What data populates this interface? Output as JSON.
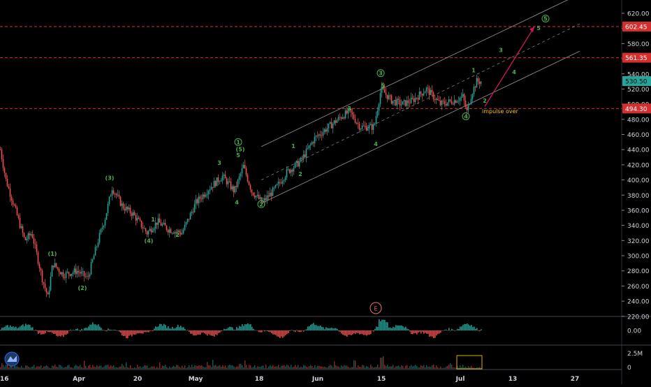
{
  "chart_data": {
    "type": "candlestick",
    "x_axis": {
      "ticks": [
        "16",
        "Apr",
        "20",
        "May",
        "18",
        "Jun",
        "15",
        "Jul",
        "13",
        "27"
      ]
    },
    "y_axis": {
      "ticks": [
        "620.00",
        "600.00",
        "580.00",
        "560.00",
        "540.00",
        "520.00",
        "500.00",
        "480.00",
        "460.00",
        "440.00",
        "420.00",
        "400.00",
        "380.00",
        "360.00",
        "340.00",
        "320.00",
        "300.00",
        "280.00",
        "260.00",
        "240.00",
        "220.00"
      ],
      "range": [
        212,
        630
      ]
    },
    "price_path": [
      [
        0,
        440
      ],
      [
        8,
        400
      ],
      [
        25,
        350
      ],
      [
        35,
        320
      ],
      [
        45,
        330
      ],
      [
        60,
        270
      ],
      [
        68,
        245
      ],
      [
        75,
        290
      ],
      [
        90,
        275
      ],
      [
        110,
        280
      ],
      [
        125,
        270
      ],
      [
        140,
        320
      ],
      [
        150,
        350
      ],
      [
        160,
        390
      ],
      [
        175,
        365
      ],
      [
        190,
        355
      ],
      [
        210,
        330
      ],
      [
        225,
        345
      ],
      [
        240,
        335
      ],
      [
        260,
        330
      ],
      [
        280,
        370
      ],
      [
        300,
        390
      ],
      [
        318,
        405
      ],
      [
        335,
        385
      ],
      [
        348,
        418
      ],
      [
        360,
        385
      ],
      [
        375,
        370
      ],
      [
        395,
        390
      ],
      [
        410,
        410
      ],
      [
        430,
        425
      ],
      [
        450,
        455
      ],
      [
        470,
        470
      ],
      [
        490,
        485
      ],
      [
        500,
        490
      ],
      [
        515,
        470
      ],
      [
        535,
        470
      ],
      [
        545,
        520
      ],
      [
        560,
        505
      ],
      [
        575,
        500
      ],
      [
        590,
        505
      ],
      [
        610,
        520
      ],
      [
        630,
        500
      ],
      [
        650,
        505
      ],
      [
        662,
        510
      ],
      [
        668,
        490
      ],
      [
        675,
        515
      ],
      [
        682,
        530
      ],
      [
        688,
        530
      ]
    ],
    "price_levels": [
      {
        "label": "602.45",
        "value": 602.45,
        "color": "#d32f2f"
      },
      {
        "label": "561.35",
        "value": 561.35,
        "color": "#d32f2f"
      },
      {
        "label": "494.30",
        "value": 494.3,
        "color": "#d32f2f"
      }
    ],
    "last_price": {
      "label": "530.50",
      "value": 530.5,
      "color": "#26a69a"
    },
    "wave_labels": [
      {
        "text": "(1)",
        "x": 75,
        "v": 300
      },
      {
        "text": "(2)",
        "x": 118,
        "v": 255
      },
      {
        "text": "(3)",
        "x": 157,
        "v": 400
      },
      {
        "text": "(4)",
        "x": 213,
        "v": 317
      },
      {
        "text": "1",
        "x": 219,
        "v": 345
      },
      {
        "text": "2",
        "x": 254,
        "v": 325
      },
      {
        "text": "3",
        "x": 314,
        "v": 420
      },
      {
        "text": "4",
        "x": 339,
        "v": 368
      },
      {
        "text": "5",
        "x": 341,
        "v": 430
      },
      {
        "text": "1",
        "x": 420,
        "v": 442
      },
      {
        "text": "2",
        "x": 430,
        "v": 405
      },
      {
        "text": "3",
        "x": 500,
        "v": 492
      },
      {
        "text": "4",
        "x": 538,
        "v": 445
      },
      {
        "text": "5",
        "x": 548,
        "v": 522
      },
      {
        "text": "1",
        "x": 678,
        "v": 542
      },
      {
        "text": "2",
        "x": 694,
        "v": 502
      },
      {
        "text": "3",
        "x": 717,
        "v": 569
      },
      {
        "text": "4",
        "x": 736,
        "v": 540
      },
      {
        "text": "5",
        "x": 771,
        "v": 598
      }
    ],
    "circled_labels": [
      {
        "text": "1",
        "x": 341,
        "v": 450
      },
      {
        "text": "2",
        "x": 374,
        "v": 368
      },
      {
        "text": "3",
        "x": 545,
        "v": 541
      },
      {
        "text": "4",
        "x": 667,
        "v": 484
      },
      {
        "text": "5",
        "x": 781,
        "v": 613
      }
    ],
    "sub_labels": [
      {
        "text": "(5)",
        "x": 344,
        "v": 438
      }
    ],
    "channel": {
      "upper": [
        [
          374,
          444
        ],
        [
          818,
          640
        ]
      ],
      "mid": [
        [
          374,
          400
        ],
        [
          830,
          606
        ]
      ],
      "lower": [
        [
          374,
          369
        ],
        [
          830,
          570
        ]
      ]
    },
    "projection": {
      "from": [
        694,
        497
      ],
      "to": [
        765,
        602
      ],
      "color": "#c2185b"
    },
    "annotation": {
      "text": "impulse over",
      "x": 690,
      "v": 488,
      "color": "#f5c518"
    },
    "event_marker": {
      "text": "E",
      "x": 538
    }
  },
  "oscillator": {
    "zero_label": "0.00"
  },
  "volume": {
    "max_label": "2.5M",
    "zero_label": "0"
  }
}
